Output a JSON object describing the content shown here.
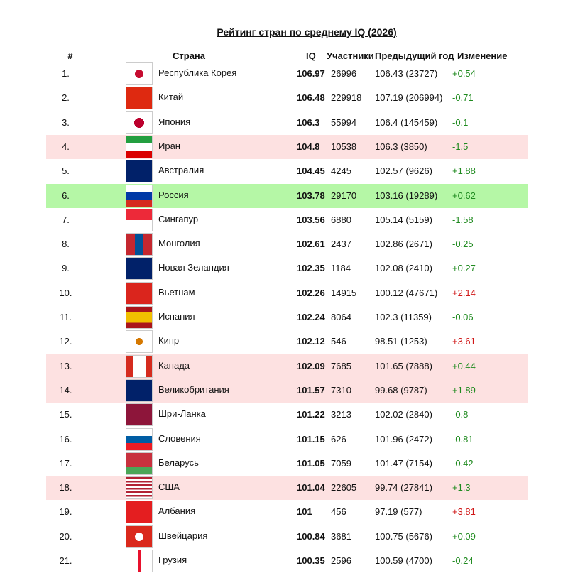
{
  "header": {
    "title": "Рейтинг стран по среднему IQ (2026)"
  },
  "table": {
    "columns": [
      "#",
      "Страна",
      "IQ",
      "Участники",
      "Предыдущий год",
      "Изменение"
    ],
    "rows": [
      [
        "1.",
        "Республика Корея",
        "106.97",
        "26996",
        "106.43 (23727)",
        "+0.54"
      ],
      [
        "2.",
        "Китай",
        "106.48",
        "229918",
        "107.19 (206994)",
        "-0.71"
      ],
      [
        "3.",
        "Япония",
        "106.3",
        "55994",
        "106.4 (145459)",
        "-0.1"
      ],
      [
        "4.",
        "Иран",
        "104.8",
        "10538",
        "106.3 (3850)",
        "-1.5"
      ],
      [
        "5.",
        "Австралия",
        "104.45",
        "4245",
        "102.57 (9626)",
        "+1.88"
      ],
      [
        "6.",
        "Россия",
        "103.78",
        "29170",
        "103.16 (19289)",
        "+0.62"
      ],
      [
        "7.",
        "Сингапур",
        "103.56",
        "6880",
        "105.14 (5159)",
        "-1.58"
      ],
      [
        "8.",
        "Монголия",
        "102.61",
        "2437",
        "102.86 (2671)",
        "-0.25"
      ],
      [
        "9.",
        "Новая Зеландия",
        "102.35",
        "1184",
        "102.08 (2410)",
        "+0.27"
      ],
      [
        "10.",
        "Вьетнам",
        "102.26",
        "14915",
        "100.12 (47671)",
        "+2.14"
      ],
      [
        "11.",
        "Испания",
        "102.24",
        "8064",
        "102.3 (11359)",
        "-0.06"
      ],
      [
        "12.",
        "Кипр",
        "102.12",
        "546",
        "98.51 (1253)",
        "+3.61"
      ],
      [
        "13.",
        "Канада",
        "102.09",
        "7685",
        "101.65 (7888)",
        "+0.44"
      ],
      [
        "14.",
        "Великобритания",
        "101.57",
        "7310",
        "99.68 (9787)",
        "+1.89"
      ],
      [
        "15.",
        "Шри-Ланка",
        "101.22",
        "3213",
        "102.02 (2840)",
        "-0.8"
      ],
      [
        "16.",
        "Словения",
        "101.15",
        "626",
        "101.96 (2472)",
        "-0.81"
      ],
      [
        "17.",
        "Беларусь",
        "101.05",
        "7059",
        "101.47 (7154)",
        "-0.42"
      ],
      [
        "18.",
        "США",
        "101.04",
        "22605",
        "99.74 (27841)",
        "+1.3"
      ],
      [
        "19.",
        "Албания",
        "101",
        "456",
        "97.19 (577)",
        "+3.81"
      ],
      [
        "20.",
        "Швейцария",
        "100.84",
        "3681",
        "100.75 (5676)",
        "+0.09"
      ],
      [
        "21.",
        "Грузия",
        "100.35",
        "2596",
        "100.59 (4700)",
        "-0.24"
      ]
    ],
    "row_highlight": {
      "3": "#fde1e1",
      "5": "#b5f7a6",
      "12": "#fde1e1",
      "13": "#fde1e1",
      "17": "#fde1e1"
    },
    "change_colors": {
      "positive_small": "#1f8a1f",
      "large_gain": "#d01818"
    }
  }
}
